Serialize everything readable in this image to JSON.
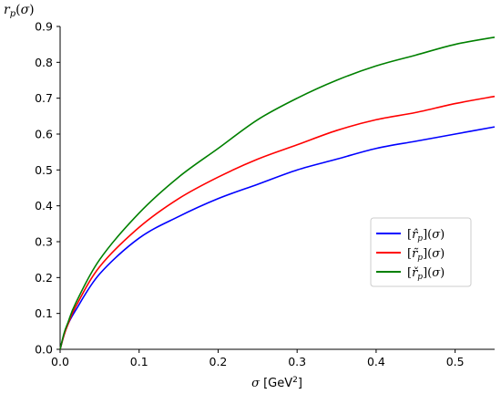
{
  "chart_data": {
    "type": "line",
    "title": "",
    "xlabel": "σ [GeV²]",
    "ylabel": "r_p(σ)",
    "xlim": [
      0.0,
      0.55
    ],
    "ylim": [
      0.0,
      0.9
    ],
    "x_ticks": [
      "0.0",
      "0.1",
      "0.2",
      "0.3",
      "0.4",
      "0.5"
    ],
    "y_ticks": [
      "0.0",
      "0.1",
      "0.2",
      "0.3",
      "0.4",
      "0.5",
      "0.6",
      "0.7",
      "0.8",
      "0.9"
    ],
    "grid": false,
    "legend_position": "center-right",
    "series": [
      {
        "name": "[r̂_p](σ)",
        "color": "#0000ff",
        "x": [
          0.0,
          0.005,
          0.01,
          0.02,
          0.05,
          0.1,
          0.15,
          0.2,
          0.25,
          0.3,
          0.35,
          0.4,
          0.45,
          0.5,
          0.55
        ],
        "y": [
          0.0,
          0.04,
          0.07,
          0.11,
          0.21,
          0.31,
          0.37,
          0.42,
          0.46,
          0.5,
          0.53,
          0.56,
          0.58,
          0.6,
          0.62
        ]
      },
      {
        "name": "[r̃_p](σ)",
        "color": "#ff0000",
        "x": [
          0.0,
          0.005,
          0.01,
          0.02,
          0.05,
          0.1,
          0.15,
          0.2,
          0.25,
          0.3,
          0.35,
          0.4,
          0.45,
          0.5,
          0.55
        ],
        "y": [
          0.0,
          0.04,
          0.07,
          0.12,
          0.23,
          0.34,
          0.42,
          0.48,
          0.53,
          0.57,
          0.61,
          0.64,
          0.66,
          0.685,
          0.705
        ]
      },
      {
        "name": "[řp](σ)",
        "color": "#008000",
        "x": [
          0.0,
          0.005,
          0.01,
          0.02,
          0.05,
          0.1,
          0.15,
          0.2,
          0.25,
          0.3,
          0.35,
          0.4,
          0.45,
          0.5,
          0.55
        ],
        "y": [
          0.0,
          0.045,
          0.075,
          0.13,
          0.25,
          0.38,
          0.48,
          0.56,
          0.64,
          0.7,
          0.75,
          0.79,
          0.82,
          0.85,
          0.87
        ]
      }
    ]
  }
}
